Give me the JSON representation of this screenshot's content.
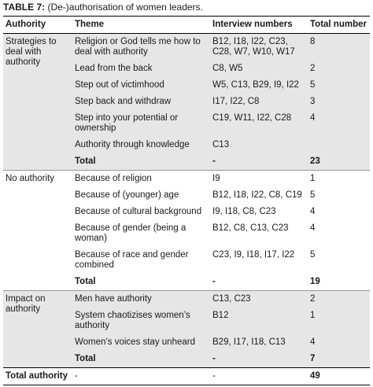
{
  "title": {
    "label": "TABLE 7:",
    "text": "(De-)authorisation of women leaders."
  },
  "header": [
    "Authority",
    "Theme",
    "Interview numbers",
    "Total number"
  ],
  "groups": [
    {
      "authority": "Strategies to deal with authority",
      "rows": [
        {
          "theme": "Religion or God tells me how to deal with authority",
          "interviews": "B12, I18, I22, C23, C28, W7, W10, W17",
          "total": 8
        },
        {
          "theme": "Lead from the back",
          "interviews": "C8, W5",
          "total": 2
        },
        {
          "theme": "Step out of victimhood",
          "interviews": "W5, C13, B29, I9, I22",
          "total": 5
        },
        {
          "theme": "Step back and withdraw",
          "interviews": "I17, I22, C8",
          "total": 3
        },
        {
          "theme": "Step into your potential or ownership",
          "interviews": "C19, W11, I22, C28",
          "total": 4
        },
        {
          "theme": "Authority through knowledge",
          "interviews": "C13"
        },
        {
          "theme": "Total",
          "interviews": "-",
          "total": 23
        }
      ]
    },
    {
      "authority": "No authority",
      "rows": [
        {
          "theme": "Because of religion",
          "interviews": "I9",
          "total": 1
        },
        {
          "theme": "Because of (younger) age",
          "interviews": "B12, I18, I22, C8, C19",
          "total": 5
        },
        {
          "theme": "Because of cultural background",
          "interviews": "I9, I18, C8, C23",
          "total": 4
        },
        {
          "theme": "Because of gender (being a woman)",
          "interviews": "B12, C8, C13, C23",
          "total": 4
        },
        {
          "theme": "Because of race and gender combined",
          "interviews": "C23, I9, I18, I17, I22",
          "total": 5
        },
        {
          "theme": "Total",
          "interviews": "-",
          "total": 19
        }
      ]
    },
    {
      "authority": "Impact on authority",
      "rows": [
        {
          "theme": "Men have authority",
          "interviews": "C13, C23",
          "total": 2
        },
        {
          "theme": "System chaotizises women’s authority",
          "interviews": "B12",
          "total": 1
        },
        {
          "theme": "Women’s voices stay unheard",
          "interviews": "B29, I17, I18, C13",
          "total": 4
        },
        {
          "theme": "Total",
          "interviews": "-",
          "total": 7
        }
      ]
    }
  ],
  "footer": {
    "label": "Total authority",
    "theme": "-",
    "interviews": "-",
    "total": 49
  }
}
